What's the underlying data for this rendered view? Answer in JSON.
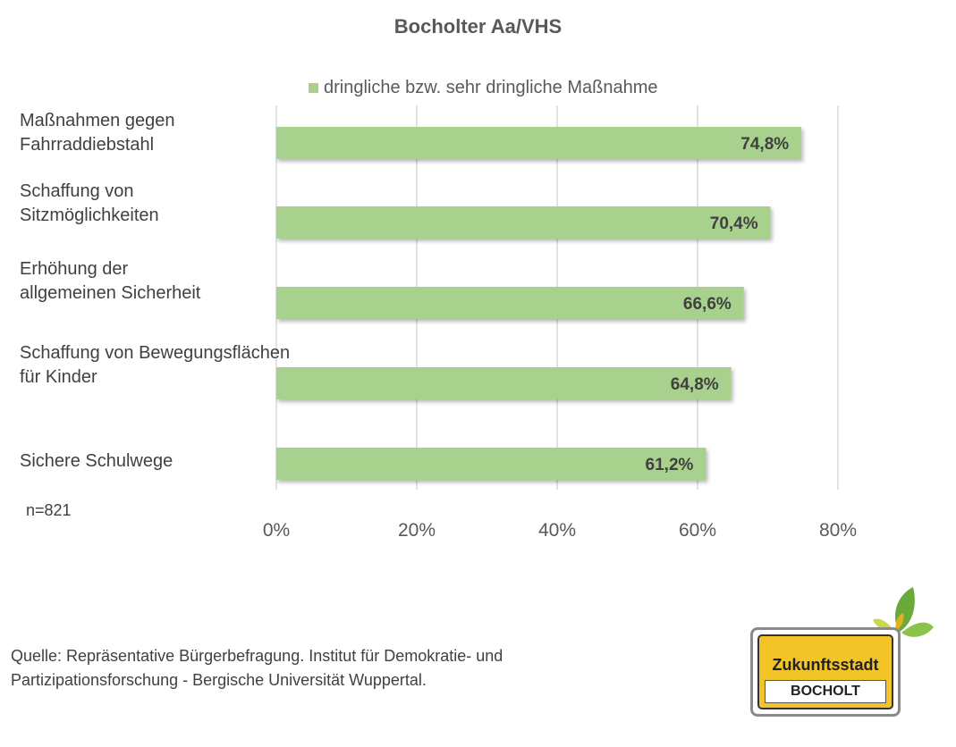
{
  "chart_data": {
    "type": "bar",
    "orientation": "horizontal",
    "title": "Bocholter Aa/VHS",
    "categories": [
      "Maßnahmen gegen\nFahrraddiebstahl",
      "Schaffung von\nSitzmöglichkeiten",
      "Erhöhung der\nallgemeinen Sicherheit",
      "Schaffung von Bewegungsflächen\nfür Kinder",
      "Sichere Schulwege"
    ],
    "series": [
      {
        "name": "dringliche bzw. sehr dringliche Maßnahme",
        "values": [
          74.8,
          70.4,
          66.6,
          64.8,
          61.2
        ],
        "labels": [
          "74,8%",
          "70,4%",
          "66,6%",
          "64,8%",
          "61,2%"
        ]
      }
    ],
    "xlim": [
      0,
      80
    ],
    "ticks": [
      0,
      20,
      40,
      60,
      80
    ],
    "tick_labels": [
      "0%",
      "20%",
      "40%",
      "60%",
      "80%"
    ],
    "grid": "vertical",
    "legend_position": "top",
    "bar_color": "#a9d18e",
    "grid_color": "#d9d9d9"
  },
  "note": "n=821",
  "source": "Quelle: Repräsentative Bürgerbefragung. Institut für Demokratie- und Partizipationsforschung - Bergische Universität Wuppertal.",
  "logo": {
    "line1": "Zukunftsstadt",
    "line2": "BOCHOLT"
  }
}
